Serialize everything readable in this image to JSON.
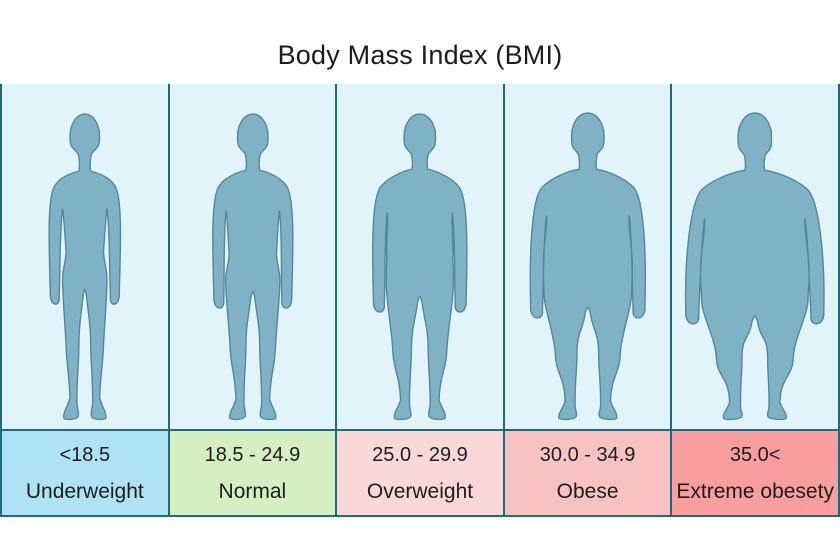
{
  "title": "Body Mass Index (BMI)",
  "chart_data": {
    "type": "table",
    "title": "Body Mass Index (BMI)",
    "legend_position": "bottom",
    "columns": [
      {
        "range": "<18.5",
        "label": "Underweight",
        "box_color": "#aee2f4",
        "figure": "thin-body-silhouette"
      },
      {
        "range": "18.5 - 24.9",
        "label": "Normal",
        "box_color": "#d6efc2",
        "figure": "normal-body-silhouette"
      },
      {
        "range": "25.0 - 29.9",
        "label": "Overweight",
        "box_color": "#fbd8d8",
        "figure": "overweight-body-silhouette"
      },
      {
        "range": "30.0 - 34.9",
        "label": "Obese",
        "box_color": "#f9c2c2",
        "figure": "obese-body-silhouette"
      },
      {
        "range": "35.0<",
        "label": "Extreme obesety",
        "box_color": "#f89e9e",
        "figure": "extreme-obese-body-silhouette"
      }
    ]
  },
  "colors": {
    "page_background": "#ffffff",
    "figure_area_background": "#e1f4fa",
    "silhouette_fill": "#80b2c5",
    "silhouette_outline": "#53869c",
    "grid_line": "#1e6a80",
    "text": "#1c1c1c",
    "underweight_box": "#aee2f4",
    "normal_box": "#d6efc2",
    "overweight_box": "#fbd8d8",
    "obese_box": "#f9c2c2",
    "extreme_obesity_box": "#f89e9e"
  }
}
